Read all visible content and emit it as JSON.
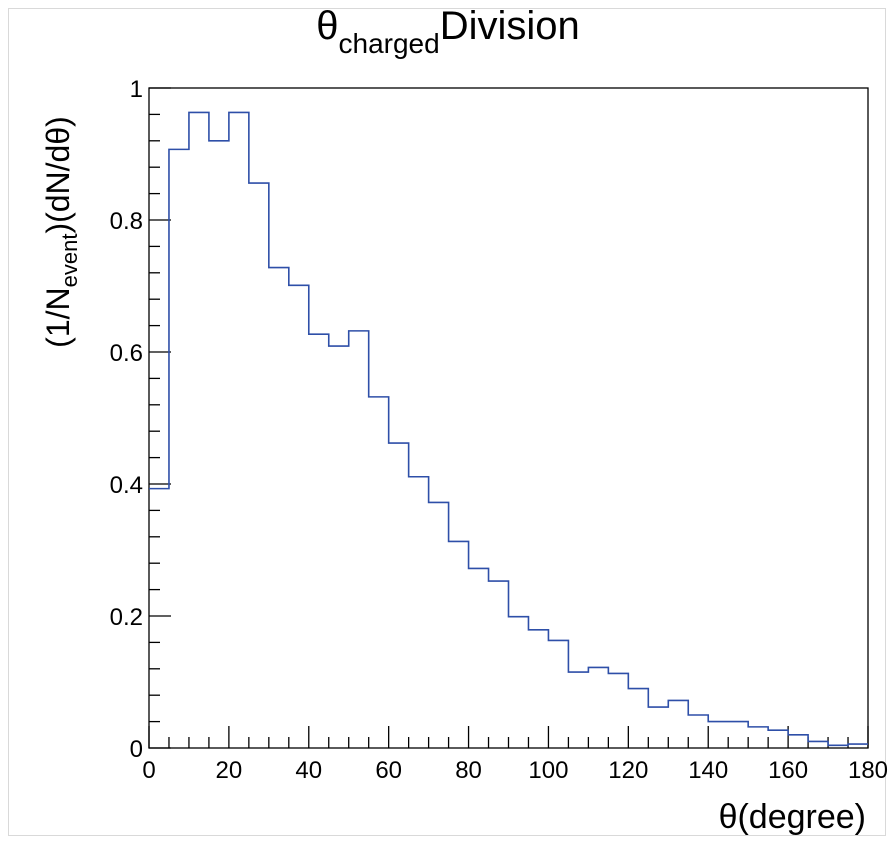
{
  "chart_data": {
    "type": "histogram",
    "title": {
      "base": "θ",
      "subscript": "charged",
      "tail": "Division"
    },
    "xlabel": "θ(degree)",
    "ylabel": {
      "prefix": "(1/N",
      "subscript": "event",
      "suffix": ")(dN/dθ)"
    },
    "xlim": [
      0,
      180
    ],
    "ylim": [
      0,
      1
    ],
    "x_ticks": [
      0,
      20,
      40,
      60,
      80,
      100,
      120,
      140,
      160,
      180
    ],
    "x_tick_labels": [
      "0",
      "20",
      "40",
      "60",
      "80",
      "100",
      "120",
      "140",
      "160",
      "180"
    ],
    "y_ticks": [
      0,
      0.2,
      0.4,
      0.6,
      0.8,
      1
    ],
    "y_tick_labels": [
      "0",
      "0.2",
      "0.4",
      "0.6",
      "0.8",
      "1"
    ],
    "bin_edges": [
      0,
      5,
      10,
      15,
      20,
      25,
      30,
      35,
      40,
      45,
      50,
      55,
      60,
      65,
      70,
      75,
      80,
      85,
      90,
      95,
      100,
      105,
      110,
      115,
      120,
      125,
      130,
      135,
      140,
      145,
      150,
      155,
      160,
      165,
      170,
      175,
      180
    ],
    "values": [
      0.393,
      0.907,
      0.963,
      0.92,
      0.963,
      0.856,
      0.728,
      0.701,
      0.627,
      0.609,
      0.632,
      0.532,
      0.462,
      0.411,
      0.372,
      0.313,
      0.272,
      0.253,
      0.199,
      0.179,
      0.163,
      0.115,
      0.122,
      0.113,
      0.09,
      0.062,
      0.072,
      0.05,
      0.04,
      0.04,
      0.032,
      0.027,
      0.02,
      0.01,
      0.004,
      0.006
    ],
    "line_color": "#2e4fa8",
    "grid": false,
    "legend": "none"
  }
}
